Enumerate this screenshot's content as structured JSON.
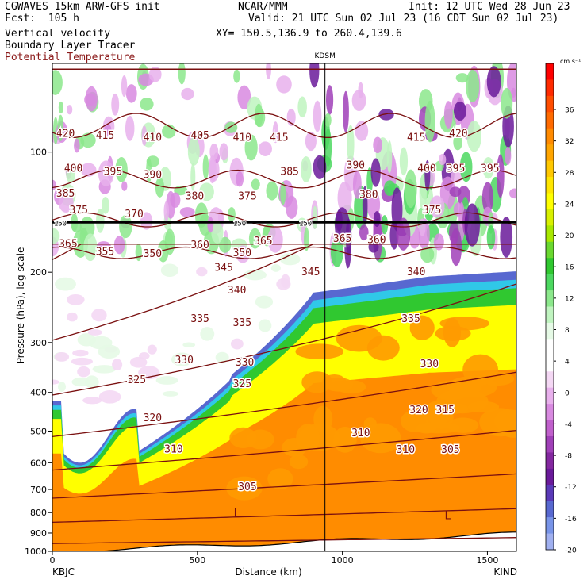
{
  "header": {
    "line1_left": "CGWAVES 15km ARW-GFS init",
    "line1_mid": "NCAR/MMM",
    "line1_right": "Init: 12 UTC Wed 28 Jun 23",
    "line2_left": "Fcst:  105 h",
    "line2_right": "Valid: 21 UTC Sun 02 Jul 23 (16 CDT Sun 02 Jul 23)",
    "line3_left": "Vertical velocity",
    "line3_right": "XY= 150.5,136.9 to 260.4,139.6",
    "line4_left": "Boundary Layer Tracer",
    "line5_left": "Potential Temperature"
  },
  "chart_data": {
    "type": "heatmap",
    "xlabel": "Distance (km)",
    "ylabel": "Pressure (hPa), log scale",
    "xlim": [
      0,
      1600
    ],
    "ylim_hpa": [
      1000,
      60
    ],
    "y_log": true,
    "x_ticks": [
      "0",
      "500",
      "1000",
      "1500"
    ],
    "y_ticks": [
      "100",
      "200",
      "300",
      "400",
      "500",
      "600",
      "700",
      "800",
      "900",
      "1000"
    ],
    "endpoint_left": "KBJC",
    "endpoint_right": "KIND",
    "marker_label": "KDSM",
    "marker_x_km": 940,
    "colorbar": {
      "unit": "cm s⁻¹",
      "labels": [
        "36",
        "32",
        "28",
        "24",
        "20",
        "16",
        "12",
        "8",
        "4",
        "0",
        "-4",
        "-8",
        "-12",
        "-16",
        "-20"
      ],
      "colors": [
        "#ff0000",
        "#ff2a00",
        "#ff4d00",
        "#ff6a00",
        "#ff8a00",
        "#ffa500",
        "#ffc800",
        "#ffe600",
        "#ffff00",
        "#d8f000",
        "#a8e800",
        "#6ad830",
        "#30c830",
        "#4cd860",
        "#8ce88c",
        "#c0f4c0",
        "#e6fae6",
        "#ffffff",
        "#ffffff",
        "#f4d8f4",
        "#e8b0ec",
        "#d88ae0",
        "#c060cc",
        "#a040b8",
        "#8428a0",
        "#6a1a9a",
        "#5a3ab8",
        "#5868d0",
        "#7894e8",
        "#a0b0f0"
      ]
    },
    "theta_labels": [
      "420",
      "415",
      "410",
      "405",
      "410",
      "415",
      "415",
      "420",
      "400",
      "395",
      "390",
      "385",
      "390",
      "400",
      "395",
      "395",
      "385",
      "375",
      "370",
      "380",
      "375",
      "380",
      "375",
      "365",
      "355",
      "360",
      "365",
      "365",
      "360",
      "350",
      "350",
      "345",
      "345",
      "340",
      "340",
      "335",
      "335",
      "335",
      "330",
      "330",
      "330",
      "325",
      "325",
      "320",
      "320",
      "315",
      "310",
      "310",
      "310",
      "305",
      "305"
    ],
    "isentropes_k": [
      305,
      310,
      315,
      320,
      325,
      330,
      335,
      340,
      345,
      350,
      355,
      360,
      365,
      370,
      375,
      380,
      385,
      390,
      395,
      400,
      405,
      410,
      415,
      420
    ],
    "tropopause_label": "150",
    "low_labels": [
      "L",
      "L"
    ]
  }
}
